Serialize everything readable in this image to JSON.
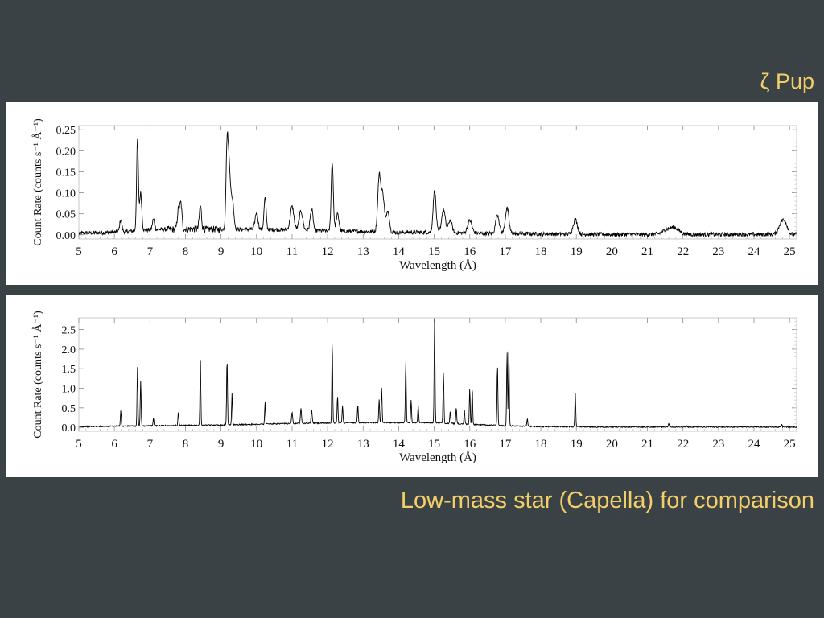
{
  "captions": {
    "top": "ζ Pup",
    "bottom": "Low-mass star (Capella) for comparison"
  },
  "chart_data": [
    {
      "type": "line",
      "title": "",
      "xlabel": "Wavelength (Å)",
      "ylabel": "Count Rate (counts s⁻¹ Å⁻¹)",
      "xlim": [
        5,
        25.2
      ],
      "ylim": [
        -0.01,
        0.26
      ],
      "xticks": [
        5,
        6,
        7,
        8,
        9,
        10,
        11,
        12,
        13,
        14,
        15,
        16,
        17,
        18,
        19,
        20,
        21,
        22,
        23,
        24,
        25
      ],
      "yticks": [
        0.0,
        0.05,
        0.1,
        0.15,
        0.2,
        0.25
      ],
      "ytick_labels": [
        "0.00",
        "0.05",
        "0.10",
        "0.15",
        "0.20",
        "0.25"
      ],
      "grid": false,
      "color": "#000000",
      "baseline": [
        [
          5,
          0.004
        ],
        [
          6,
          0.006
        ],
        [
          7,
          0.012
        ],
        [
          8,
          0.014
        ],
        [
          9,
          0.013
        ],
        [
          10,
          0.013
        ],
        [
          11,
          0.012
        ],
        [
          12,
          0.009
        ],
        [
          13,
          0.008
        ],
        [
          14,
          0.006
        ],
        [
          15,
          0.006
        ],
        [
          16,
          0.004
        ],
        [
          17,
          0.003
        ],
        [
          18,
          0.002
        ],
        [
          20,
          0.001
        ],
        [
          22,
          0.001
        ],
        [
          25.2,
          0.001
        ]
      ],
      "noise": 0.008,
      "peaks": [
        {
          "x": 6.18,
          "y": 0.03,
          "w": 0.03
        },
        {
          "x": 6.65,
          "y": 0.215,
          "w": 0.025
        },
        {
          "x": 6.74,
          "y": 0.09,
          "w": 0.03
        },
        {
          "x": 7.1,
          "y": 0.025,
          "w": 0.03
        },
        {
          "x": 7.8,
          "y": 0.045,
          "w": 0.03
        },
        {
          "x": 7.87,
          "y": 0.06,
          "w": 0.03
        },
        {
          "x": 8.42,
          "y": 0.055,
          "w": 0.03
        },
        {
          "x": 9.17,
          "y": 0.19,
          "w": 0.03
        },
        {
          "x": 9.23,
          "y": 0.14,
          "w": 0.035
        },
        {
          "x": 9.32,
          "y": 0.07,
          "w": 0.04
        },
        {
          "x": 10.0,
          "y": 0.04,
          "w": 0.04
        },
        {
          "x": 10.24,
          "y": 0.075,
          "w": 0.03
        },
        {
          "x": 11.0,
          "y": 0.055,
          "w": 0.05
        },
        {
          "x": 11.25,
          "y": 0.045,
          "w": 0.05
        },
        {
          "x": 11.55,
          "y": 0.05,
          "w": 0.04
        },
        {
          "x": 12.13,
          "y": 0.165,
          "w": 0.03
        },
        {
          "x": 12.28,
          "y": 0.04,
          "w": 0.04
        },
        {
          "x": 13.45,
          "y": 0.125,
          "w": 0.04
        },
        {
          "x": 13.55,
          "y": 0.09,
          "w": 0.05
        },
        {
          "x": 13.7,
          "y": 0.05,
          "w": 0.04
        },
        {
          "x": 15.01,
          "y": 0.1,
          "w": 0.04
        },
        {
          "x": 15.26,
          "y": 0.055,
          "w": 0.05
        },
        {
          "x": 15.45,
          "y": 0.03,
          "w": 0.05
        },
        {
          "x": 16.0,
          "y": 0.03,
          "w": 0.06
        },
        {
          "x": 16.78,
          "y": 0.045,
          "w": 0.05
        },
        {
          "x": 17.05,
          "y": 0.06,
          "w": 0.05
        },
        {
          "x": 18.97,
          "y": 0.035,
          "w": 0.06
        },
        {
          "x": 21.6,
          "y": 0.012,
          "w": 0.15
        },
        {
          "x": 21.8,
          "y": 0.01,
          "w": 0.12
        },
        {
          "x": 24.78,
          "y": 0.03,
          "w": 0.08
        },
        {
          "x": 24.9,
          "y": 0.018,
          "w": 0.06
        }
      ]
    },
    {
      "type": "line",
      "title": "",
      "xlabel": "Wavelength (Å)",
      "ylabel": "Count Rate (counts s⁻¹ Å⁻¹)",
      "xlim": [
        5,
        25.2
      ],
      "ylim": [
        -0.1,
        2.8
      ],
      "xticks": [
        5,
        6,
        7,
        8,
        9,
        10,
        11,
        12,
        13,
        14,
        15,
        16,
        17,
        18,
        19,
        20,
        21,
        22,
        23,
        24,
        25
      ],
      "yticks": [
        0.0,
        0.5,
        1.0,
        1.5,
        2.0,
        2.5
      ],
      "ytick_labels": [
        "0.0",
        "0.5",
        "1.0",
        "1.5",
        "2.0",
        "2.5"
      ],
      "grid": false,
      "color": "#000000",
      "baseline": [
        [
          5,
          0.02
        ],
        [
          7,
          0.04
        ],
        [
          9,
          0.06
        ],
        [
          11,
          0.1
        ],
        [
          13,
          0.12
        ],
        [
          15,
          0.12
        ],
        [
          16,
          0.08
        ],
        [
          17,
          0.04
        ],
        [
          18,
          0.02
        ],
        [
          20,
          0.01
        ],
        [
          25.2,
          0.01
        ]
      ],
      "noise": 0.025,
      "peaks": [
        {
          "x": 6.18,
          "y": 0.4,
          "w": 0.012
        },
        {
          "x": 6.65,
          "y": 1.5,
          "w": 0.012
        },
        {
          "x": 6.74,
          "y": 1.15,
          "w": 0.012
        },
        {
          "x": 7.1,
          "y": 0.2,
          "w": 0.012
        },
        {
          "x": 7.8,
          "y": 0.35,
          "w": 0.012
        },
        {
          "x": 8.42,
          "y": 1.7,
          "w": 0.012
        },
        {
          "x": 9.17,
          "y": 1.7,
          "w": 0.012
        },
        {
          "x": 9.31,
          "y": 0.8,
          "w": 0.012
        },
        {
          "x": 10.24,
          "y": 0.55,
          "w": 0.012
        },
        {
          "x": 11.0,
          "y": 0.3,
          "w": 0.015
        },
        {
          "x": 11.25,
          "y": 0.4,
          "w": 0.015
        },
        {
          "x": 11.55,
          "y": 0.35,
          "w": 0.015
        },
        {
          "x": 12.13,
          "y": 2.1,
          "w": 0.012
        },
        {
          "x": 12.28,
          "y": 0.7,
          "w": 0.012
        },
        {
          "x": 12.42,
          "y": 0.45,
          "w": 0.012
        },
        {
          "x": 12.85,
          "y": 0.45,
          "w": 0.012
        },
        {
          "x": 13.45,
          "y": 0.6,
          "w": 0.012
        },
        {
          "x": 13.52,
          "y": 0.9,
          "w": 0.012
        },
        {
          "x": 14.2,
          "y": 1.6,
          "w": 0.012
        },
        {
          "x": 14.35,
          "y": 0.6,
          "w": 0.012
        },
        {
          "x": 14.55,
          "y": 0.45,
          "w": 0.012
        },
        {
          "x": 15.01,
          "y": 2.65,
          "w": 0.012
        },
        {
          "x": 15.26,
          "y": 1.3,
          "w": 0.012
        },
        {
          "x": 15.45,
          "y": 0.3,
          "w": 0.012
        },
        {
          "x": 15.62,
          "y": 0.4,
          "w": 0.012
        },
        {
          "x": 15.85,
          "y": 0.35,
          "w": 0.012
        },
        {
          "x": 16.0,
          "y": 0.9,
          "w": 0.012
        },
        {
          "x": 16.07,
          "y": 0.95,
          "w": 0.012
        },
        {
          "x": 16.78,
          "y": 1.55,
          "w": 0.012
        },
        {
          "x": 17.05,
          "y": 1.9,
          "w": 0.012
        },
        {
          "x": 17.1,
          "y": 1.95,
          "w": 0.012
        },
        {
          "x": 17.62,
          "y": 0.2,
          "w": 0.012
        },
        {
          "x": 18.97,
          "y": 0.88,
          "w": 0.012
        },
        {
          "x": 21.6,
          "y": 0.1,
          "w": 0.012
        },
        {
          "x": 22.1,
          "y": 0.04,
          "w": 0.012
        },
        {
          "x": 24.78,
          "y": 0.06,
          "w": 0.012
        }
      ]
    }
  ]
}
